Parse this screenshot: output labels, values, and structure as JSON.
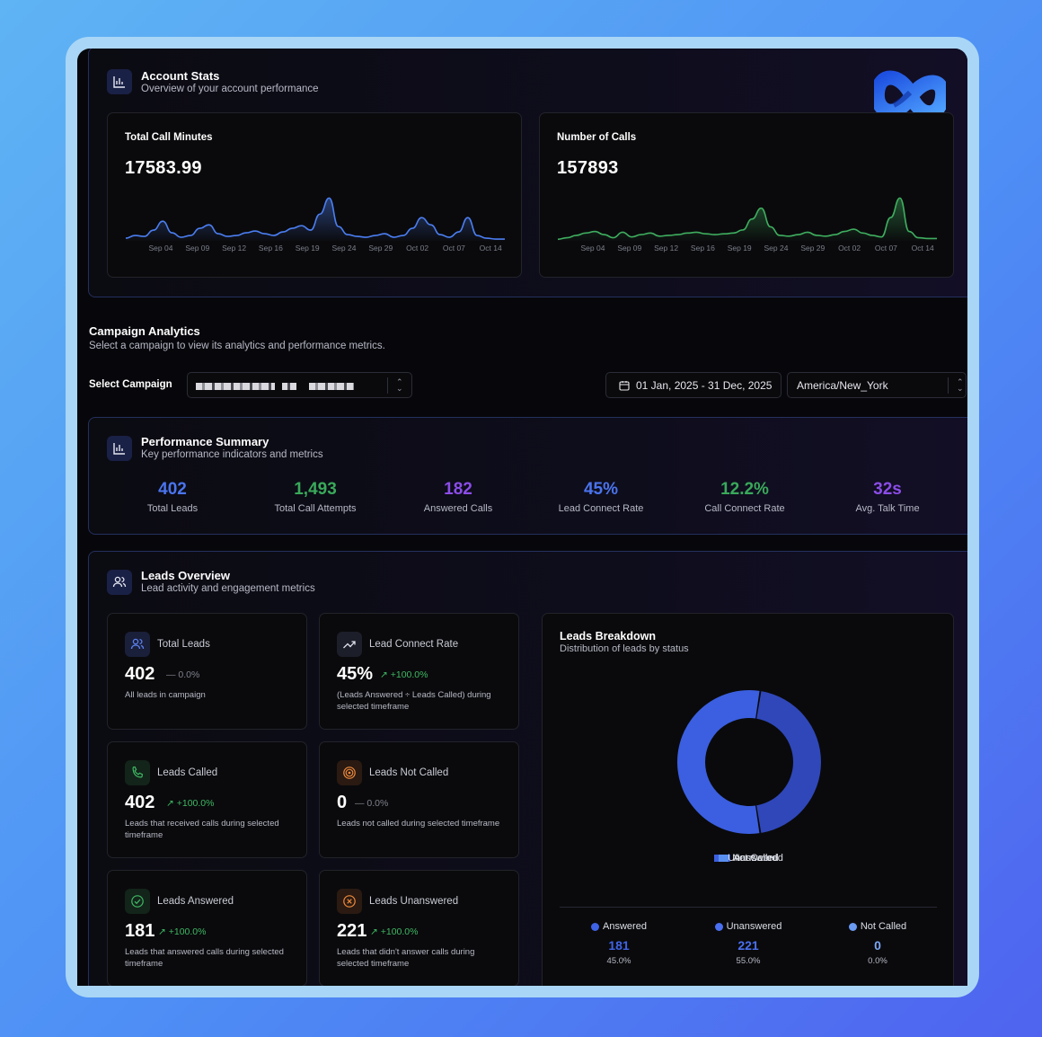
{
  "account": {
    "title": "Account Stats",
    "subtitle": "Overview of your account performance",
    "call_minutes": {
      "label": "Total Call Minutes",
      "value": "17583.99"
    },
    "num_calls": {
      "label": "Number of Calls",
      "value": "157893"
    }
  },
  "chart_data": [
    {
      "type": "area",
      "title": "Total Call Minutes",
      "categories": [
        "Sep 04",
        "Sep 09",
        "Sep 12",
        "Sep 16",
        "Sep 19",
        "Sep 24",
        "Sep 29",
        "Oct 02",
        "Oct 07",
        "Oct 14"
      ],
      "x": [
        0,
        1,
        2,
        3,
        4,
        5,
        6,
        7,
        8,
        9,
        10,
        11,
        12,
        13,
        14,
        15,
        16,
        17,
        18,
        19,
        20,
        21,
        22,
        23,
        24,
        25,
        26,
        27,
        28,
        29,
        30,
        31,
        32,
        33,
        34,
        35,
        36,
        37,
        38,
        39,
        40,
        41
      ],
      "values": [
        3,
        6,
        5,
        12,
        22,
        9,
        4,
        6,
        14,
        18,
        8,
        5,
        6,
        9,
        11,
        8,
        6,
        10,
        14,
        17,
        12,
        30,
        48,
        16,
        7,
        5,
        4,
        6,
        8,
        4,
        6,
        14,
        26,
        18,
        7,
        4,
        10,
        26,
        6,
        3,
        2,
        2
      ],
      "color": "#4b7ef2"
    },
    {
      "type": "area",
      "title": "Number of Calls",
      "categories": [
        "Sep 04",
        "Sep 09",
        "Sep 12",
        "Sep 16",
        "Sep 19",
        "Sep 24",
        "Sep 29",
        "Oct 02",
        "Oct 07",
        "Oct 14"
      ],
      "x": [
        0,
        1,
        2,
        3,
        4,
        5,
        6,
        7,
        8,
        9,
        10,
        11,
        12,
        13,
        14,
        15,
        16,
        17,
        18,
        19,
        20,
        21,
        22,
        23,
        24,
        25,
        26,
        27,
        28,
        29,
        30,
        31,
        32,
        33,
        34,
        35,
        36,
        37,
        38,
        39,
        40,
        41
      ],
      "values": [
        2,
        4,
        7,
        10,
        12,
        8,
        4,
        11,
        5,
        8,
        10,
        6,
        7,
        8,
        10,
        11,
        9,
        8,
        9,
        10,
        14,
        28,
        42,
        18,
        7,
        6,
        8,
        11,
        7,
        6,
        8,
        12,
        15,
        10,
        7,
        5,
        30,
        55,
        12,
        4,
        3,
        3
      ],
      "color": "#3fae5f"
    }
  ],
  "campaign": {
    "title": "Campaign Analytics",
    "subtitle": "Select a campaign to view its analytics and performance metrics.",
    "select_label": "Select Campaign",
    "date_range": "01 Jan, 2025 - 31 Dec, 2025",
    "timezone": "America/New_York"
  },
  "performance": {
    "title": "Performance Summary",
    "subtitle": "Key performance indicators and metrics",
    "metrics": [
      {
        "value": "402",
        "label": "Total Leads",
        "color": "#4a74ee"
      },
      {
        "value": "1,493",
        "label": "Total Call Attempts",
        "color": "#39a95a"
      },
      {
        "value": "182",
        "label": "Answered Calls",
        "color": "#8b4de8"
      },
      {
        "value": "45%",
        "label": "Lead Connect Rate",
        "color": "#4a74ee"
      },
      {
        "value": "12.2%",
        "label": "Call Connect Rate",
        "color": "#39a95a"
      },
      {
        "value": "32s",
        "label": "Avg. Talk Time",
        "color": "#8b4de8"
      }
    ]
  },
  "leads": {
    "title": "Leads Overview",
    "subtitle": "Lead activity and engagement metrics",
    "cards": [
      {
        "title": "Total Leads",
        "value": "402",
        "delta": "0.0%",
        "desc": "All leads in campaign"
      },
      {
        "title": "Lead Connect Rate",
        "value": "45%",
        "delta": "+100.0%",
        "desc": "(Leads Answered ÷ Leads Called) during selected timeframe"
      },
      {
        "title": "Leads Called",
        "value": "402",
        "delta": "+100.0%",
        "desc": "Leads that received calls during selected timeframe"
      },
      {
        "title": "Leads Not Called",
        "value": "0",
        "delta": "0.0%",
        "desc": "Leads not called during selected timeframe"
      },
      {
        "title": "Leads Answered",
        "value": "181",
        "delta": "+100.0%",
        "desc": "Leads that answered calls during selected timeframe"
      },
      {
        "title": "Leads Unanswered",
        "value": "221",
        "delta": "+100.0%",
        "desc": "Leads that didn't answer calls during selected timeframe"
      }
    ]
  },
  "breakdown": {
    "title": "Leads Breakdown",
    "subtitle": "Distribution of leads by status",
    "legend": [
      "Answered",
      "Unanswered",
      "Not Called"
    ],
    "colors": [
      "#2f47b8",
      "#3b5fe0",
      "#5a8ff0"
    ],
    "stats": [
      {
        "label": "Answered",
        "value": "181",
        "pct": "45.0%"
      },
      {
        "label": "Unanswered",
        "value": "221",
        "pct": "55.0%"
      },
      {
        "label": "Not Called",
        "value": "0",
        "pct": "0.0%"
      }
    ],
    "pie": {
      "type": "pie",
      "categories": [
        "Answered",
        "Unanswered",
        "Not Called"
      ],
      "values": [
        181,
        221,
        0
      ]
    }
  }
}
